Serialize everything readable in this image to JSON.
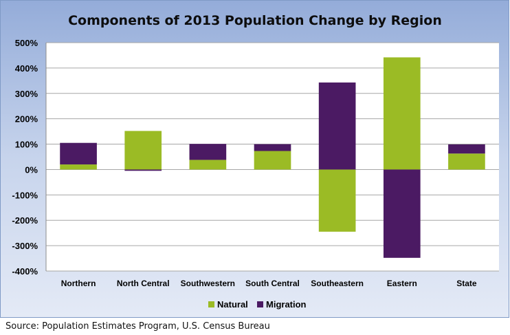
{
  "chart_data": {
    "type": "bar",
    "stacked": true,
    "title": "Components of 2013 Population Change by Region",
    "categories": [
      "Northern",
      "North Central",
      "Southwestern",
      "South Central",
      "Southeastern",
      "Eastern",
      "State"
    ],
    "series": [
      {
        "name": "Natural",
        "color": "#9bbb25",
        "values": [
          20,
          152,
          38,
          73,
          -245,
          442,
          63
        ]
      },
      {
        "name": "Migration",
        "color": "#4b1a63",
        "values": [
          85,
          -5,
          63,
          27,
          343,
          -348,
          36
        ]
      }
    ],
    "ylim": [
      -400,
      500
    ],
    "yticks": [
      500,
      400,
      300,
      200,
      100,
      0,
      -100,
      -200,
      -300,
      -400
    ],
    "ytick_labels": [
      "500%",
      "400%",
      "300%",
      "200%",
      "100%",
      "0%",
      "-100%",
      "-200%",
      "-300%",
      "-400%"
    ],
    "xlabel": "",
    "ylabel": "",
    "grid": true,
    "legend_position": "bottom"
  },
  "source": "Source:  Population Estimates Program, U.S. Census Bureau"
}
